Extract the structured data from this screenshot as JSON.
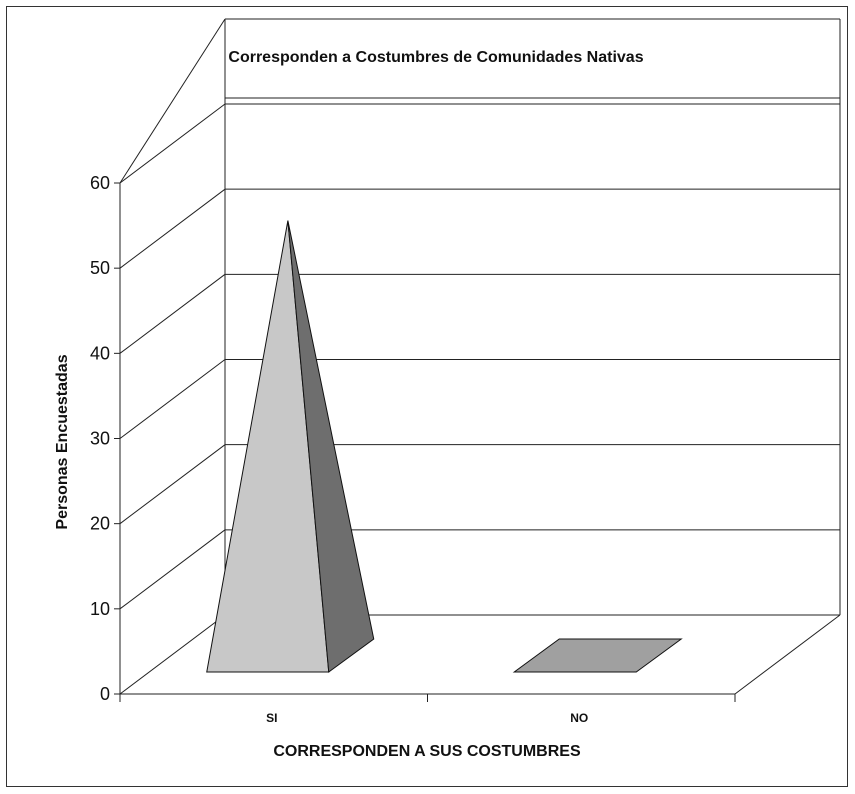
{
  "chart_data": {
    "type": "bar",
    "subtype": "3d-pyramid",
    "title": "Corresponden a Costumbres de Comunidades Nativas",
    "xlabel": "CORRESPONDEN A SUS COSTUMBRES",
    "ylabel": "Personas Encuestadas",
    "categories": [
      "SI",
      "NO"
    ],
    "values": [
      53,
      0
    ],
    "ylim": [
      0,
      60
    ],
    "yticks": [
      "0",
      "10",
      "20",
      "30",
      "40",
      "50",
      "60"
    ],
    "grid": true,
    "legend": false,
    "colors": {
      "pyramid_front": "#c8c8c8",
      "pyramid_side": "#6e6e6e",
      "zero_bar": "#a0a0a0",
      "grid": "#222222"
    }
  }
}
